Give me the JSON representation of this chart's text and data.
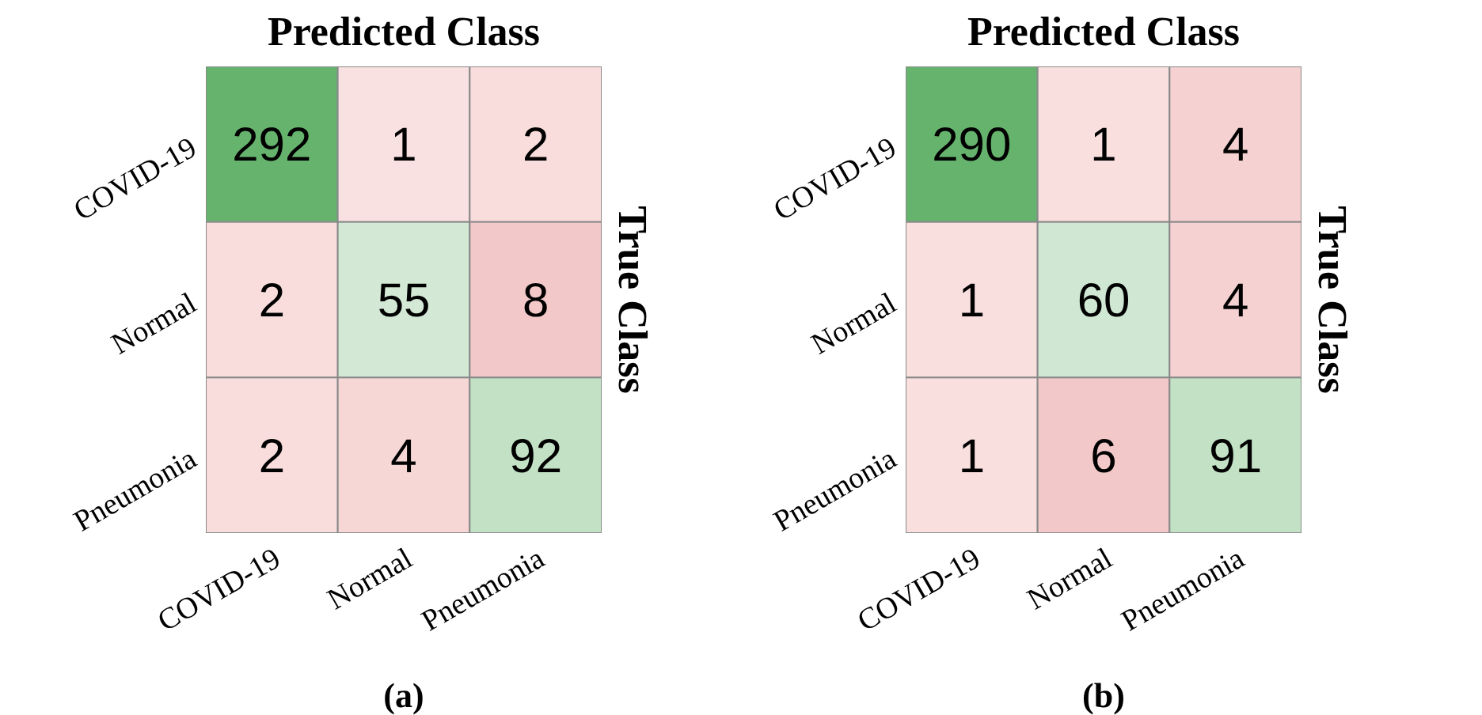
{
  "chart_data": [
    {
      "type": "heatmap",
      "xlabel": "Predicted Class",
      "ylabel": "True Class",
      "categories": [
        "COVID-19",
        "Normal",
        "Pneumonia"
      ],
      "y_categories": [
        "COVID-19",
        "Normal",
        "Pneumonia"
      ],
      "cells": [
        [
          292,
          1,
          2
        ],
        [
          2,
          55,
          8
        ],
        [
          2,
          4,
          92
        ]
      ],
      "data_labels": true,
      "annotations": [
        "(a)"
      ]
    },
    {
      "type": "heatmap",
      "xlabel": "Predicted Class",
      "ylabel": "True Class",
      "categories": [
        "COVID-19",
        "Normal",
        "Pneumonia"
      ],
      "y_categories": [
        "COVID-19",
        "Normal",
        "Pneumonia"
      ],
      "cells": [
        [
          290,
          1,
          4
        ],
        [
          1,
          60,
          4
        ],
        [
          1,
          6,
          91
        ]
      ],
      "data_labels": true,
      "annotations": [
        "(b)"
      ]
    }
  ]
}
